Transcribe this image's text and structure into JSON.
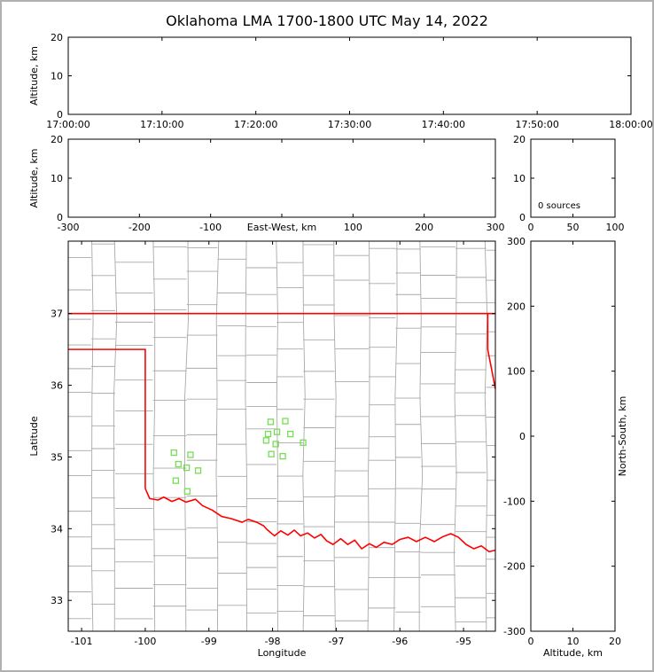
{
  "title": "Oklahoma LMA 1700-1800 UTC May 14, 2022",
  "colors": {
    "state_border": "#ff0000",
    "river": "#ff0000",
    "county": "#a9a9a9",
    "station": "#77dd55",
    "axis": "#000000",
    "frame_border": "#b0b0b0",
    "background": "#ffffff"
  },
  "chart_data": [
    {
      "id": "time_height",
      "type": "scatter",
      "description": "Altitude vs time panel; no VHF sources plotted during 1700-1800 UTC",
      "ylabel": "Altitude, km",
      "xlim": [
        0,
        3600
      ],
      "ylim": [
        0,
        20
      ],
      "xtick_values": [
        0,
        600,
        1200,
        1800,
        2400,
        3000,
        3600
      ],
      "xtick_labels": [
        "17:00:00",
        "17:10:00",
        "17:20:00",
        "17:30:00",
        "17:40:00",
        "17:50:00",
        "18:00:00"
      ],
      "ytick_values": [
        0,
        10,
        20
      ],
      "ytick_labels": [
        "0",
        "10",
        "20"
      ],
      "points": []
    },
    {
      "id": "ew_height",
      "type": "scatter",
      "description": "Altitude vs east-west distance panel; no sources plotted",
      "xlabel_inline": "East-West, km",
      "ylabel": "Altitude, km",
      "xlim": [
        -300,
        300
      ],
      "ylim": [
        0,
        20
      ],
      "xtick_values": [
        -300,
        -200,
        -100,
        0,
        100,
        200,
        300
      ],
      "xtick_labels": [
        "-300",
        "-200",
        "-100",
        "",
        "100",
        "200",
        "300"
      ],
      "ytick_values": [
        0,
        10,
        20
      ],
      "ytick_labels": [
        "0",
        "10",
        "20"
      ],
      "points": []
    },
    {
      "id": "alt_hist",
      "type": "scatter",
      "description": "Altitude histogram of source counts; zero sources",
      "annotation": "0 sources",
      "xlim": [
        0,
        100
      ],
      "ylim": [
        0,
        20
      ],
      "xtick_values": [
        0,
        50,
        100
      ],
      "xtick_labels": [
        "0",
        "50",
        "100"
      ],
      "ytick_values": [
        0,
        10,
        20
      ],
      "ytick_labels": [
        "0",
        "10",
        "20"
      ],
      "points": []
    },
    {
      "id": "plan_view",
      "type": "scatter",
      "description": "Plan-view map of Oklahoma with county borders (gray), state border and Red River (red), and LMA station locations (green squares)",
      "xlabel": "Longitude",
      "ylabel": "Latitude",
      "xlim": [
        -101.21,
        -94.5
      ],
      "ylim": [
        32.57,
        38.01
      ],
      "xtick_values": [
        -101,
        -100,
        -99,
        -98,
        -97,
        -96,
        -95
      ],
      "xtick_labels": [
        "-101",
        "-100",
        "-99",
        "-98",
        "-97",
        "-96",
        "-95"
      ],
      "ytick_values": [
        33,
        34,
        35,
        36,
        37
      ],
      "ytick_labels": [
        "33",
        "34",
        "35",
        "36",
        "37"
      ],
      "stations": [
        [
          -98.03,
          35.49
        ],
        [
          -97.8,
          35.5
        ],
        [
          -98.07,
          35.32
        ],
        [
          -97.93,
          35.35
        ],
        [
          -97.72,
          35.32
        ],
        [
          -98.1,
          35.23
        ],
        [
          -97.95,
          35.18
        ],
        [
          -98.02,
          35.04
        ],
        [
          -97.84,
          35.01
        ],
        [
          -97.52,
          35.2
        ],
        [
          -99.55,
          35.06
        ],
        [
          -99.29,
          35.03
        ],
        [
          -99.48,
          34.9
        ],
        [
          -99.35,
          34.85
        ],
        [
          -99.17,
          34.81
        ],
        [
          -99.52,
          34.67
        ],
        [
          -99.34,
          34.52
        ]
      ],
      "state_outline": [
        [
          [
            -101.21,
            37.0
          ],
          [
            -94.5,
            37.0
          ]
        ],
        [
          [
            -94.62,
            37.0
          ],
          [
            -94.62,
            36.5
          ],
          [
            -94.55,
            36.18
          ],
          [
            -94.5,
            35.95
          ]
        ],
        [
          [
            -101.21,
            36.5
          ],
          [
            -100.0,
            36.5
          ],
          [
            -100.0,
            34.56
          ]
        ]
      ],
      "river": [
        [
          -100.0,
          34.56
        ],
        [
          -99.93,
          34.42
        ],
        [
          -99.8,
          34.4
        ],
        [
          -99.71,
          34.44
        ],
        [
          -99.58,
          34.38
        ],
        [
          -99.47,
          34.42
        ],
        [
          -99.36,
          34.37
        ],
        [
          -99.21,
          34.41
        ],
        [
          -99.1,
          34.32
        ],
        [
          -98.95,
          34.26
        ],
        [
          -98.8,
          34.17
        ],
        [
          -98.65,
          34.14
        ],
        [
          -98.48,
          34.09
        ],
        [
          -98.38,
          34.13
        ],
        [
          -98.25,
          34.09
        ],
        [
          -98.14,
          34.04
        ],
        [
          -98.09,
          33.99
        ],
        [
          -97.97,
          33.9
        ],
        [
          -97.87,
          33.97
        ],
        [
          -97.76,
          33.91
        ],
        [
          -97.66,
          33.98
        ],
        [
          -97.56,
          33.9
        ],
        [
          -97.45,
          33.94
        ],
        [
          -97.34,
          33.87
        ],
        [
          -97.24,
          33.92
        ],
        [
          -97.15,
          33.83
        ],
        [
          -97.05,
          33.78
        ],
        [
          -96.93,
          33.86
        ],
        [
          -96.82,
          33.78
        ],
        [
          -96.71,
          33.84
        ],
        [
          -96.6,
          33.72
        ],
        [
          -96.48,
          33.79
        ],
        [
          -96.37,
          33.74
        ],
        [
          -96.25,
          33.81
        ],
        [
          -96.12,
          33.78
        ],
        [
          -96.0,
          33.85
        ],
        [
          -95.87,
          33.88
        ],
        [
          -95.74,
          33.82
        ],
        [
          -95.6,
          33.88
        ],
        [
          -95.46,
          33.82
        ],
        [
          -95.32,
          33.89
        ],
        [
          -95.2,
          33.93
        ],
        [
          -95.08,
          33.88
        ],
        [
          -94.96,
          33.78
        ],
        [
          -94.84,
          33.72
        ],
        [
          -94.72,
          33.76
        ],
        [
          -94.6,
          33.68
        ],
        [
          -94.5,
          33.7
        ]
      ],
      "county_grid": {
        "seed": 7,
        "dx": 0.48,
        "dy": 0.4
      }
    },
    {
      "id": "ns_height",
      "type": "scatter",
      "description": "North-south distance vs altitude panel; no sources plotted",
      "xlabel": "Altitude, km",
      "ylabel_right": "North-South, km",
      "xlim": [
        0,
        20
      ],
      "ylim": [
        -300,
        300
      ],
      "xtick_values": [
        0,
        10,
        20
      ],
      "xtick_labels": [
        "0",
        "10",
        "20"
      ],
      "ytick_values": [
        -300,
        -200,
        -100,
        0,
        100,
        200,
        300
      ],
      "ytick_labels": [
        "-300",
        "-200",
        "-100",
        "0",
        "100",
        "200",
        "300"
      ],
      "points": []
    }
  ]
}
